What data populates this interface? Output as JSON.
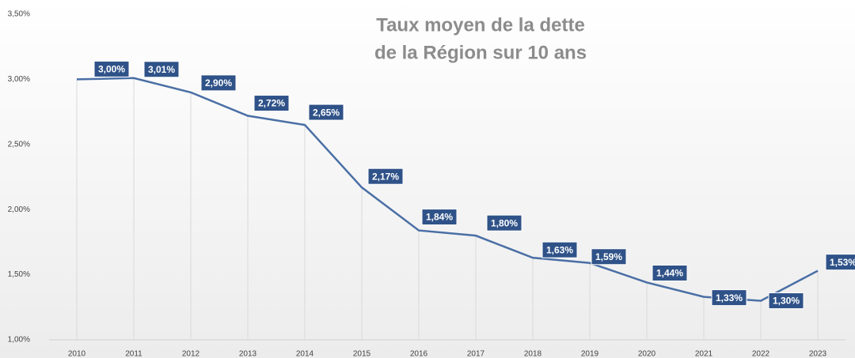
{
  "chart_data": {
    "type": "line",
    "title_lines": [
      "Taux moyen de la dette",
      "de la Région sur 10 ans"
    ],
    "categories": [
      "2010",
      "2011",
      "2012",
      "2013",
      "2014",
      "2015",
      "2016",
      "2017",
      "2018",
      "2019",
      "2020",
      "2021",
      "2022",
      "2023"
    ],
    "values": [
      3.0,
      3.01,
      2.9,
      2.72,
      2.65,
      2.17,
      1.84,
      1.8,
      1.63,
      1.59,
      1.44,
      1.33,
      1.3,
      1.53
    ],
    "value_labels": [
      "3,00%",
      "3,01%",
      "2,90%",
      "2,72%",
      "2,65%",
      "2,17%",
      "1,84%",
      "1,80%",
      "1,63%",
      "1,59%",
      "1,44%",
      "1,33%",
      "1,30%",
      "1,53%"
    ],
    "color": "#4a6fa5",
    "label_color": "#2f5288",
    "ylim": [
      1.0,
      3.5
    ],
    "yticks": [
      {
        "value": 1.0,
        "label": "1,00%"
      },
      {
        "value": 1.5,
        "label": "1,50%"
      },
      {
        "value": 2.0,
        "label": "2,00%"
      },
      {
        "value": 2.5,
        "label": "2,50%"
      },
      {
        "value": 3.0,
        "label": "3,00%"
      },
      {
        "value": 3.5,
        "label": "3,50%"
      }
    ],
    "grid": true
  }
}
